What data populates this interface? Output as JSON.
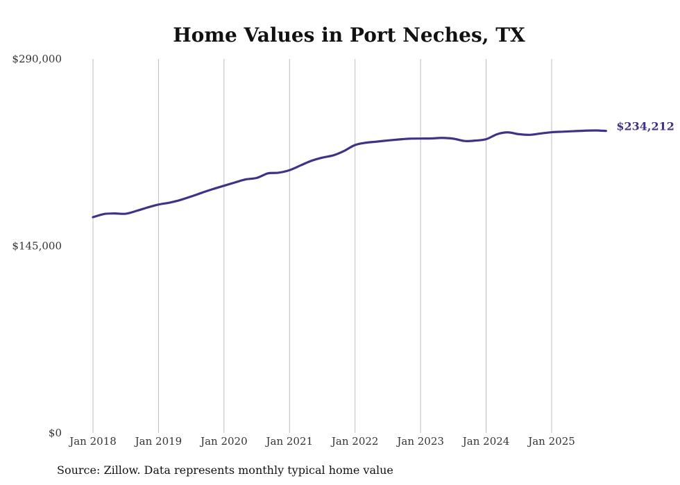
{
  "chart_data": {
    "type": "line",
    "title": "Home Values in Port Neches, TX",
    "source": "Source: Zillow. Data represents monthly typical home value",
    "ylim": [
      0,
      290000
    ],
    "y_ticks": [
      {
        "value": 0,
        "label": "$0"
      },
      {
        "value": 145000,
        "label": "$145,000"
      },
      {
        "value": 290000,
        "label": "$290,000"
      }
    ],
    "x_start": 2018.0,
    "x_end": 2025.83,
    "x_ticks": [
      {
        "value": 2018,
        "label": "Jan 2018"
      },
      {
        "value": 2019,
        "label": "Jan 2019"
      },
      {
        "value": 2020,
        "label": "Jan 2020"
      },
      {
        "value": 2021,
        "label": "Jan 2021"
      },
      {
        "value": 2022,
        "label": "Jan 2022"
      },
      {
        "value": 2023,
        "label": "Jan 2023"
      },
      {
        "value": 2024,
        "label": "Jan 2024"
      },
      {
        "value": 2025,
        "label": "Jan 2025"
      }
    ],
    "grid": "vertical",
    "series": [
      {
        "name": "Typical home value",
        "color": "#3f3388",
        "end_label": "$234,212",
        "x": [
          2018.0,
          2018.17,
          2018.33,
          2018.5,
          2018.67,
          2018.83,
          2019.0,
          2019.17,
          2019.33,
          2019.5,
          2019.67,
          2019.83,
          2020.0,
          2020.17,
          2020.33,
          2020.5,
          2020.67,
          2020.83,
          2021.0,
          2021.17,
          2021.33,
          2021.5,
          2021.67,
          2021.83,
          2022.0,
          2022.17,
          2022.33,
          2022.5,
          2022.67,
          2022.83,
          2023.0,
          2023.17,
          2023.33,
          2023.5,
          2023.67,
          2023.83,
          2024.0,
          2024.17,
          2024.33,
          2024.5,
          2024.67,
          2024.83,
          2025.0,
          2025.17,
          2025.33,
          2025.5,
          2025.67,
          2025.83
        ],
        "values": [
          167300,
          169800,
          170200,
          170000,
          172300,
          174800,
          177100,
          178600,
          180600,
          183400,
          186400,
          189100,
          191700,
          194300,
          196600,
          197800,
          201300,
          201800,
          203800,
          207500,
          211000,
          213500,
          215300,
          218600,
          223300,
          225100,
          225900,
          226800,
          227600,
          228200,
          228300,
          228400,
          228800,
          228200,
          226400,
          226700,
          227800,
          231700,
          233100,
          231700,
          231200,
          232200,
          233200,
          233600,
          234000,
          234400,
          234600,
          234212
        ]
      }
    ]
  }
}
